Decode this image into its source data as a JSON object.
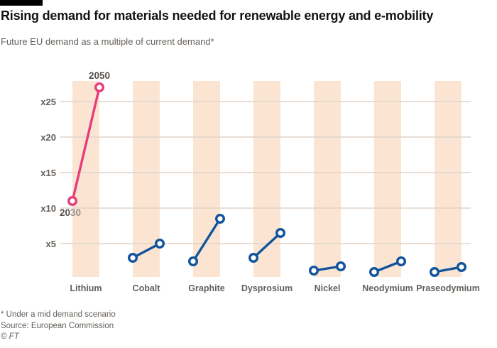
{
  "header": {
    "title": "Rising demand for materials needed for renewable energy and e-mobility",
    "subtitle": "Future EU demand as a multiple of current demand*"
  },
  "footer": {
    "footnote": "* Under a mid demand scenario",
    "source": "Source: European Commission",
    "credit": "© FT"
  },
  "chart_data": {
    "type": "line",
    "subtype": "slope",
    "title": "Rising demand for materials needed for renewable energy and e-mobility",
    "subtitle": "Future EU demand as a multiple of current demand*",
    "categories": [
      "Lithium",
      "Cobalt",
      "Graphite",
      "Dysprosium",
      "Nickel",
      "Neodymium",
      "Praseodymium"
    ],
    "series": [
      {
        "name": "2030",
        "values": [
          11,
          3,
          2.5,
          3,
          1.2,
          1,
          1
        ]
      },
      {
        "name": "2050",
        "values": [
          27,
          5,
          8.5,
          6.5,
          1.8,
          2.5,
          1.7
        ]
      }
    ],
    "ylim": [
      0,
      28
    ],
    "yticks": [
      {
        "value": 5,
        "label": "x5"
      },
      {
        "value": 10,
        "label": "x10"
      },
      {
        "value": 15,
        "label": "x15"
      },
      {
        "value": 20,
        "label": "x20"
      },
      {
        "value": 25,
        "label": "x25"
      }
    ],
    "grid": "horizontal",
    "legend": "none",
    "highlight_category": "Lithium",
    "annotations": [
      {
        "target": {
          "category": "Lithium",
          "series": "2050"
        },
        "placement": "above",
        "parts": [
          {
            "text": "2050",
            "color": "#55504b"
          }
        ]
      },
      {
        "target": {
          "category": "Lithium",
          "series": "2030"
        },
        "placement": "below",
        "parts": [
          {
            "text": "20",
            "color": "#55504b"
          },
          {
            "text": "30",
            "color": "#948f89"
          }
        ]
      }
    ],
    "colors": {
      "highlight": "#e63d7c",
      "line": "#12549c",
      "band": "#fbe5d2",
      "gridline": "#e0d4c9",
      "label": "#66605b",
      "title_text": "#141414"
    }
  }
}
